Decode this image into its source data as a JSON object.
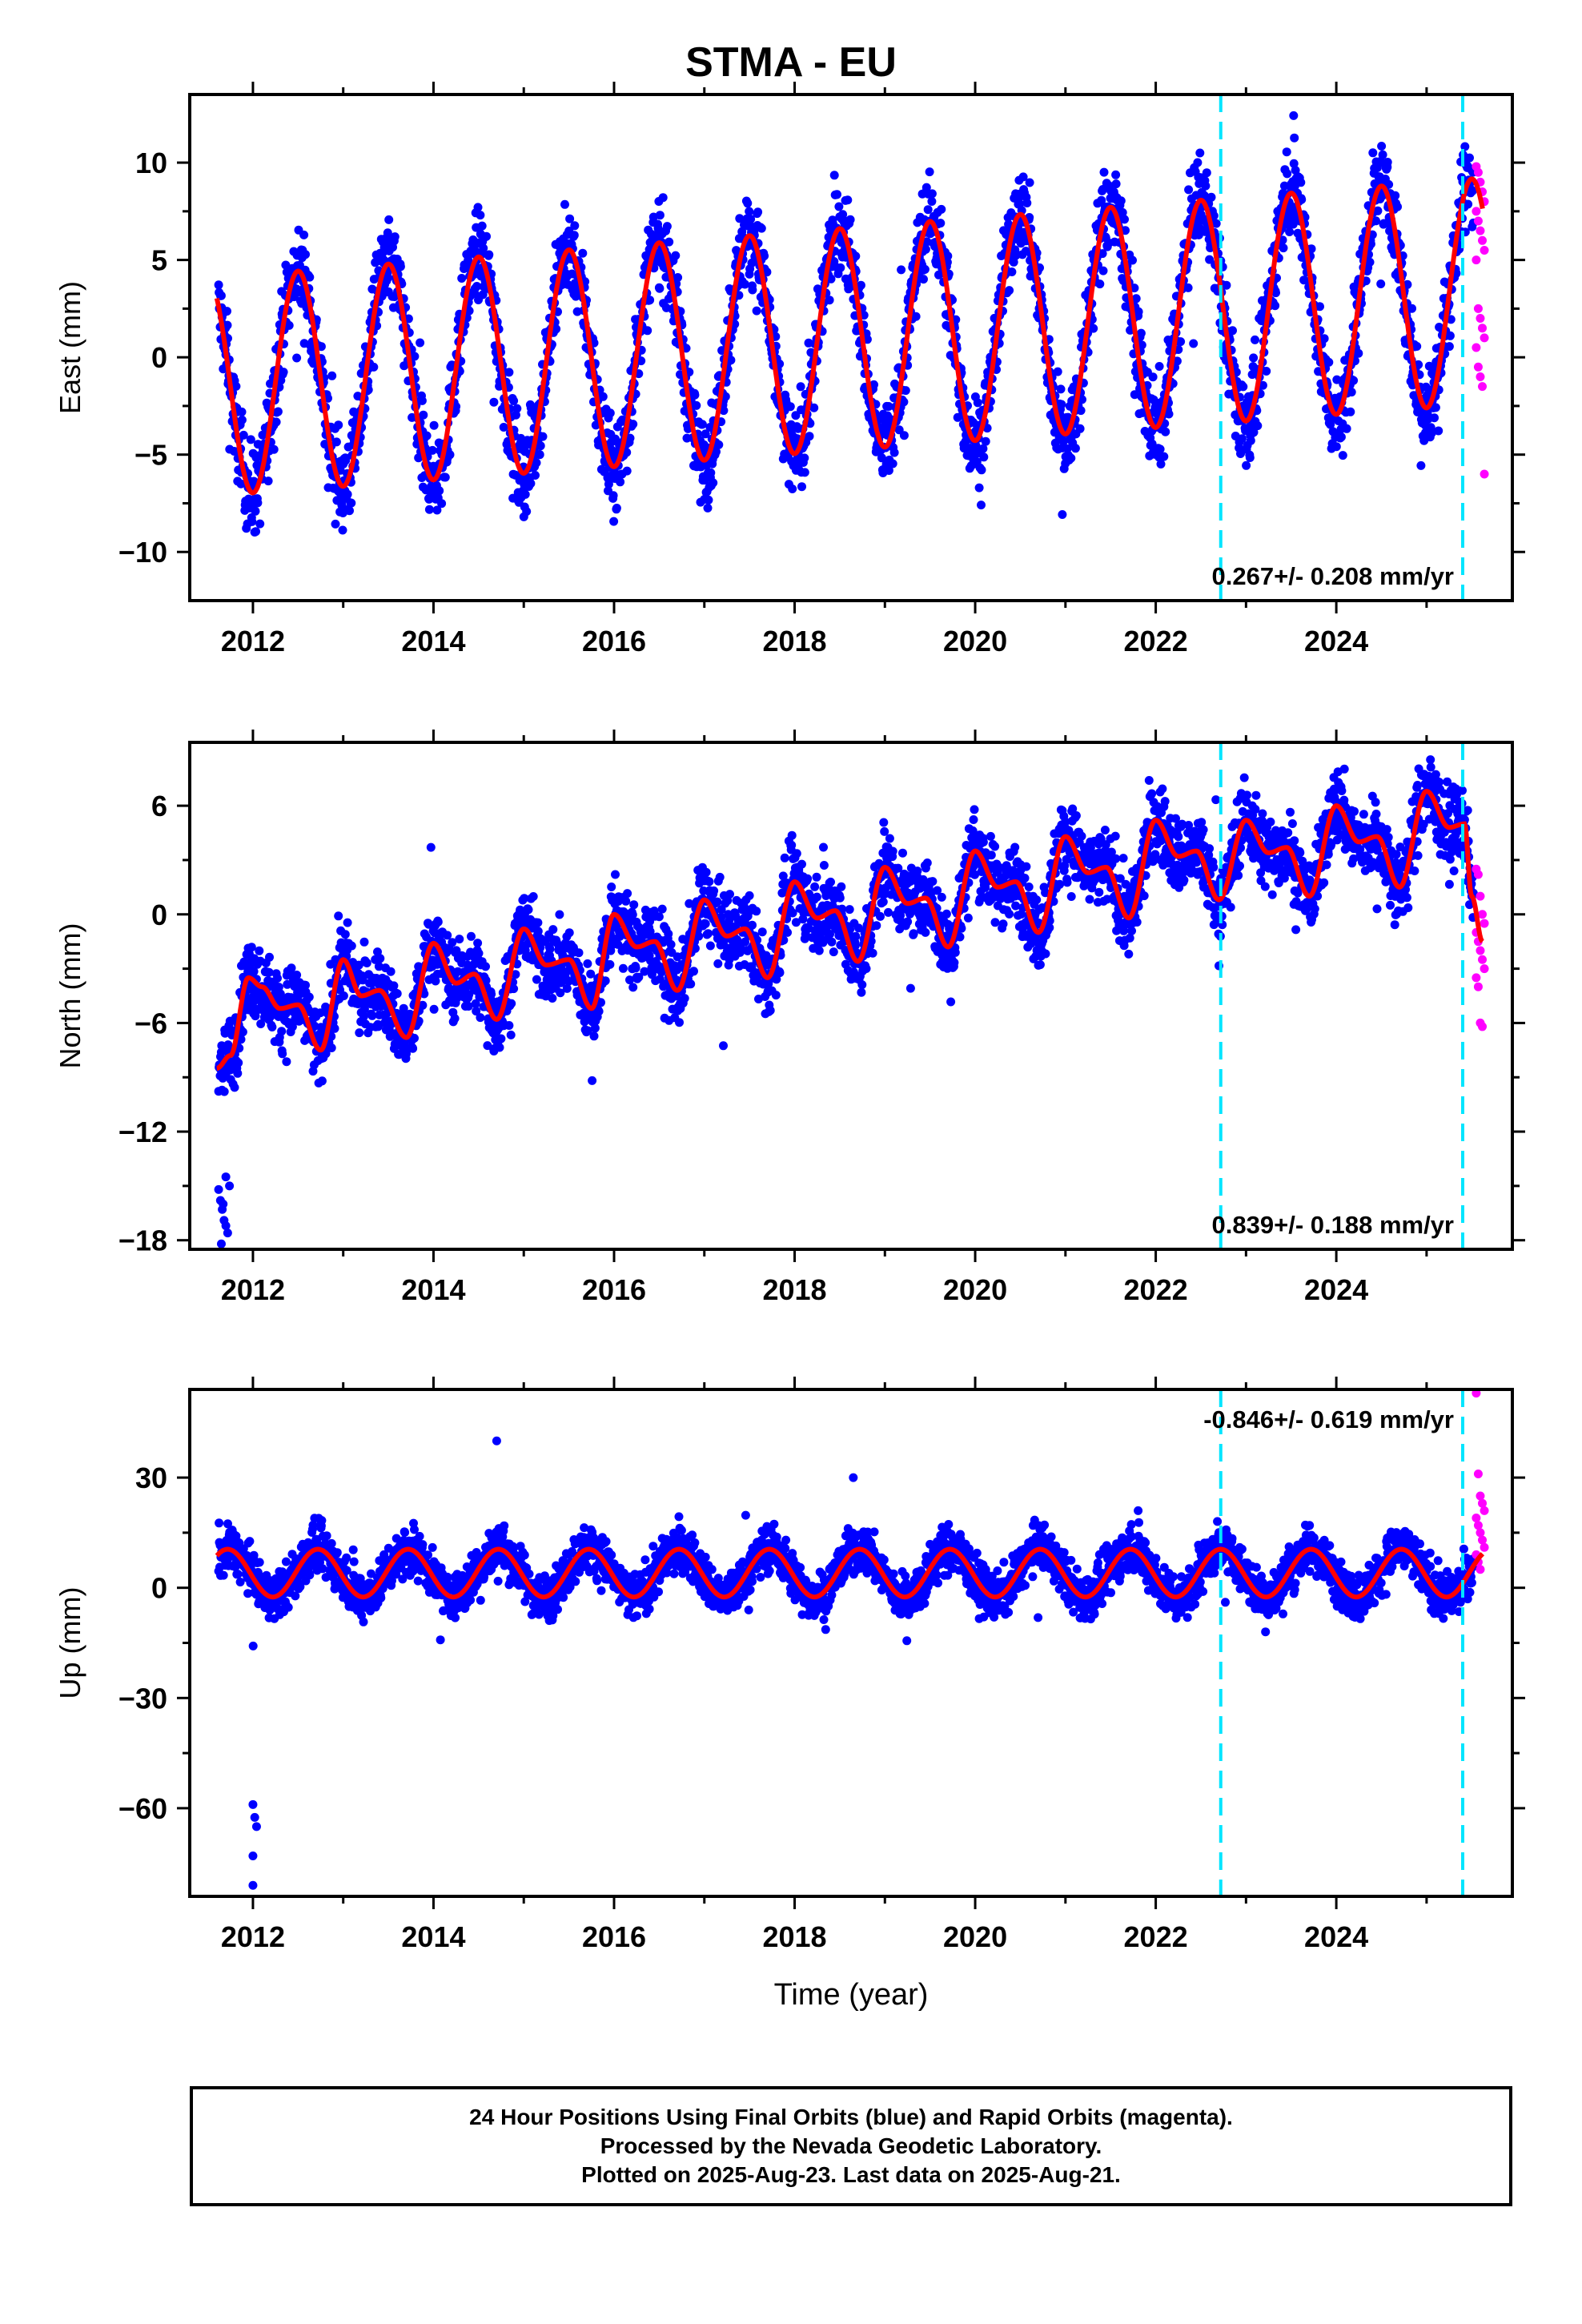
{
  "title": "STMA - EU",
  "colors": {
    "final": "#0000ff",
    "rapid": "#ff00ff",
    "model": "#ff0000",
    "steps": "#00e5ff"
  },
  "chart_data": [
    {
      "type": "scatter",
      "panel": "east",
      "ylabel": "East (mm)",
      "xlim": [
        2011.3,
        2025.95
      ],
      "ylim": [
        -12.5,
        13.5
      ],
      "yticks": [
        -10,
        -5,
        0,
        5,
        10
      ],
      "yticklabels": [
        "−10",
        "−5",
        "0",
        "5",
        "10"
      ],
      "xticks": [
        2012,
        2014,
        2016,
        2018,
        2020,
        2022,
        2024
      ],
      "rate_label": "0.267+/- 0.208 mm/yr",
      "rate_position": "bottom-right",
      "step_lines": [
        2022.72,
        2025.4
      ],
      "model": {
        "start": 2011.6,
        "end": 2025.62,
        "offset": -1.5,
        "rate": 0.267,
        "amplitude_start": 5.6,
        "amplitude_end": 5.8,
        "peak_phase": 0.5,
        "offset_growth": 0.35
      },
      "scatter_noise": 1.6,
      "rapid_points": {
        "x_start": 2025.55,
        "x_end": 2025.64,
        "y": [
          9.8,
          9.5,
          9.0,
          8.5,
          8.0,
          7.5,
          7.0,
          6.5,
          6.0,
          5.5,
          5.0,
          2.5,
          2.0,
          1.5,
          1.0,
          0.5,
          -0.5,
          -1.0,
          -1.5,
          -6.0
        ]
      }
    },
    {
      "type": "scatter",
      "panel": "north",
      "ylabel": "North (mm)",
      "xlim": [
        2011.3,
        2025.95
      ],
      "ylim": [
        -18.5,
        9.5
      ],
      "yticks": [
        -18,
        -12,
        -6,
        0,
        6
      ],
      "yticklabels": [
        "−18",
        "−12",
        "−6",
        "0",
        "6"
      ],
      "xticks": [
        2012,
        2014,
        2016,
        2018,
        2020,
        2022,
        2024
      ],
      "rate_label": "0.839+/- 0.188 mm/yr",
      "rate_position": "bottom-right",
      "step_lines": [
        2022.72,
        2025.4
      ],
      "model": [
        [
          2011.6,
          -8.5
        ],
        [
          2011.75,
          -7.8
        ],
        [
          2011.95,
          -3.5
        ],
        [
          2012.1,
          -4.0
        ],
        [
          2012.3,
          -5.2
        ],
        [
          2012.5,
          -5.0
        ],
        [
          2012.75,
          -7.5
        ],
        [
          2013.0,
          -2.5
        ],
        [
          2013.2,
          -4.5
        ],
        [
          2013.4,
          -4.2
        ],
        [
          2013.7,
          -6.8
        ],
        [
          2014.0,
          -1.6
        ],
        [
          2014.25,
          -3.8
        ],
        [
          2014.45,
          -3.3
        ],
        [
          2014.7,
          -5.8
        ],
        [
          2015.0,
          -0.8
        ],
        [
          2015.25,
          -2.8
        ],
        [
          2015.5,
          -2.5
        ],
        [
          2015.75,
          -5.2
        ],
        [
          2016.0,
          0.0
        ],
        [
          2016.25,
          -1.8
        ],
        [
          2016.45,
          -1.5
        ],
        [
          2016.7,
          -4.2
        ],
        [
          2017.0,
          0.8
        ],
        [
          2017.25,
          -1.2
        ],
        [
          2017.45,
          -0.8
        ],
        [
          2017.7,
          -3.5
        ],
        [
          2018.0,
          1.8
        ],
        [
          2018.25,
          -0.2
        ],
        [
          2018.45,
          0.2
        ],
        [
          2018.7,
          -2.6
        ],
        [
          2019.0,
          2.6
        ],
        [
          2019.25,
          0.6
        ],
        [
          2019.45,
          0.9
        ],
        [
          2019.7,
          -1.8
        ],
        [
          2020.0,
          3.5
        ],
        [
          2020.25,
          1.5
        ],
        [
          2020.45,
          1.8
        ],
        [
          2020.7,
          -1.0
        ],
        [
          2021.0,
          4.3
        ],
        [
          2021.25,
          2.3
        ],
        [
          2021.45,
          2.6
        ],
        [
          2021.7,
          -0.2
        ],
        [
          2022.0,
          5.2
        ],
        [
          2022.25,
          3.2
        ],
        [
          2022.45,
          3.5
        ],
        [
          2022.7,
          0.8
        ],
        [
          2023.0,
          5.2
        ],
        [
          2023.25,
          3.4
        ],
        [
          2023.45,
          3.7
        ],
        [
          2023.7,
          1.0
        ],
        [
          2024.0,
          6.0
        ],
        [
          2024.25,
          4.0
        ],
        [
          2024.45,
          4.3
        ],
        [
          2024.7,
          1.5
        ],
        [
          2025.0,
          6.8
        ],
        [
          2025.25,
          4.8
        ],
        [
          2025.42,
          5.0
        ],
        [
          2025.5,
          1.0
        ],
        [
          2025.62,
          -1.5
        ]
      ],
      "scatter_noise": 1.5,
      "extra_points": [
        [
          2011.62,
          -15.2
        ],
        [
          2011.64,
          -15.8
        ],
        [
          2011.66,
          -16.3
        ],
        [
          2011.68,
          -16.9
        ],
        [
          2011.7,
          -17.2
        ],
        [
          2011.72,
          -17.6
        ],
        [
          2011.65,
          -18.2
        ],
        [
          2011.74,
          -15.0
        ],
        [
          2011.7,
          -14.5
        ],
        [
          2011.67,
          -16.0
        ]
      ],
      "rapid_points": {
        "x_start": 2025.55,
        "x_end": 2025.64,
        "y": [
          2.5,
          2.2,
          1.0,
          0.0,
          -0.5,
          -1.0,
          -1.5,
          -2.0,
          -2.5,
          -3.0,
          -3.5,
          -4.0,
          -6.0,
          -6.2
        ]
      }
    },
    {
      "type": "scatter",
      "panel": "up",
      "ylabel": "Up (mm)",
      "xlabel": "Time (year)",
      "xlim": [
        2011.3,
        2025.95
      ],
      "ylim": [
        -84,
        54
      ],
      "yticks": [
        -60,
        -30,
        0,
        30
      ],
      "yticklabels": [
        "−60",
        "−30",
        "0",
        "30"
      ],
      "xticks": [
        2012,
        2014,
        2016,
        2018,
        2020,
        2022,
        2024
      ],
      "rate_label": "-0.846+/- 0.619 mm/yr",
      "rate_position": "top-right",
      "step_lines": [
        2022.72,
        2025.4
      ],
      "model": {
        "start": 2011.6,
        "end": 2025.62,
        "offset": 4.0,
        "rate": -0.846,
        "amplitude_start": 6.5,
        "amplitude_end": 6.5,
        "peak_phase": 0.72,
        "offset_growth": 0.0
      },
      "scatter_noise": 4.5,
      "extra_points": [
        [
          2012.0,
          -59.0
        ],
        [
          2012.02,
          -62.5
        ],
        [
          2012.04,
          -65.0
        ],
        [
          2012.0,
          -73.0
        ],
        [
          2012.0,
          -81.0
        ],
        [
          2014.7,
          40.0
        ],
        [
          2018.65,
          30.0
        ]
      ],
      "rapid_points": {
        "x_start": 2025.55,
        "x_end": 2025.64,
        "y": [
          53.0,
          31.0,
          25.0,
          23.0,
          21.0,
          19.0,
          17.0,
          15.0,
          13.0,
          11.0,
          9.0,
          7.0,
          5.0
        ]
      }
    }
  ],
  "footer": {
    "line1": "24 Hour Positions Using Final Orbits (blue) and Rapid Orbits (magenta).",
    "line2": "Processed by the Nevada Geodetic Laboratory.",
    "line3": "Plotted on 2025-Aug-23. Last data on 2025-Aug-21."
  }
}
